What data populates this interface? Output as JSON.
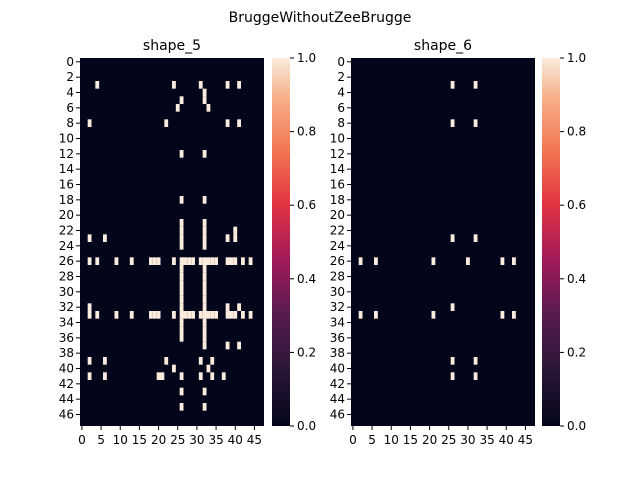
{
  "suptitle": "BruggeWithoutZeeBrugge",
  "chart_data": [
    {
      "type": "heatmap",
      "title": "shape_5",
      "rows": 48,
      "cols": 48,
      "value_range": [
        0.0,
        1.0
      ],
      "colormap": "rocket",
      "x_tick_labels": [
        "0",
        "5",
        "10",
        "15",
        "20",
        "25",
        "30",
        "35",
        "40",
        "45"
      ],
      "y_tick_labels": [
        "0",
        "2",
        "4",
        "6",
        "8",
        "10",
        "12",
        "14",
        "16",
        "18",
        "20",
        "22",
        "24",
        "26",
        "28",
        "30",
        "32",
        "34",
        "36",
        "38",
        "40",
        "42",
        "44",
        "46"
      ],
      "colorbar_ticks": [
        "0.0",
        "0.2",
        "0.4",
        "0.6",
        "0.8",
        "1.0"
      ],
      "colorbar_tick_values": [
        0.0,
        0.2,
        0.4,
        0.6,
        0.8,
        1.0
      ],
      "description_of_ones": "cells equal to 1 (all others 0)",
      "cells": [
        [
          3,
          4
        ],
        [
          3,
          24
        ],
        [
          3,
          31
        ],
        [
          3,
          38
        ],
        [
          3,
          41
        ],
        [
          4,
          32
        ],
        [
          5,
          26
        ],
        [
          5,
          32
        ],
        [
          6,
          25
        ],
        [
          6,
          33
        ],
        [
          8,
          2
        ],
        [
          8,
          22
        ],
        [
          8,
          38
        ],
        [
          8,
          41
        ],
        [
          12,
          26
        ],
        [
          12,
          32
        ],
        [
          18,
          26
        ],
        [
          18,
          32
        ],
        [
          21,
          26
        ],
        [
          21,
          32
        ],
        [
          22,
          26
        ],
        [
          22,
          32
        ],
        [
          22,
          40
        ],
        [
          23,
          2
        ],
        [
          23,
          6
        ],
        [
          23,
          26
        ],
        [
          23,
          32
        ],
        [
          23,
          38
        ],
        [
          23,
          40
        ],
        [
          24,
          26
        ],
        [
          24,
          32
        ],
        [
          26,
          2
        ],
        [
          26,
          4
        ],
        [
          26,
          9
        ],
        [
          26,
          13
        ],
        [
          26,
          18
        ],
        [
          26,
          19
        ],
        [
          26,
          20
        ],
        [
          26,
          24
        ],
        [
          26,
          26
        ],
        [
          26,
          27
        ],
        [
          26,
          28
        ],
        [
          26,
          29
        ],
        [
          26,
          31
        ],
        [
          26,
          32
        ],
        [
          26,
          33
        ],
        [
          26,
          34
        ],
        [
          26,
          35
        ],
        [
          26,
          38
        ],
        [
          26,
          39
        ],
        [
          26,
          40
        ],
        [
          26,
          42
        ],
        [
          26,
          44
        ],
        [
          27,
          26
        ],
        [
          27,
          32
        ],
        [
          28,
          26
        ],
        [
          28,
          32
        ],
        [
          29,
          26
        ],
        [
          29,
          32
        ],
        [
          30,
          26
        ],
        [
          30,
          32
        ],
        [
          31,
          26
        ],
        [
          31,
          32
        ],
        [
          32,
          2
        ],
        [
          32,
          26
        ],
        [
          32,
          32
        ],
        [
          32,
          38
        ],
        [
          32,
          41
        ],
        [
          33,
          2
        ],
        [
          33,
          4
        ],
        [
          33,
          9
        ],
        [
          33,
          13
        ],
        [
          33,
          18
        ],
        [
          33,
          19
        ],
        [
          33,
          20
        ],
        [
          33,
          24
        ],
        [
          33,
          26
        ],
        [
          33,
          27
        ],
        [
          33,
          28
        ],
        [
          33,
          29
        ],
        [
          33,
          31
        ],
        [
          33,
          32
        ],
        [
          33,
          33
        ],
        [
          33,
          34
        ],
        [
          33,
          35
        ],
        [
          33,
          38
        ],
        [
          33,
          39
        ],
        [
          33,
          40
        ],
        [
          33,
          42
        ],
        [
          33,
          44
        ],
        [
          34,
          26
        ],
        [
          34,
          32
        ],
        [
          35,
          26
        ],
        [
          35,
          32
        ],
        [
          36,
          26
        ],
        [
          36,
          32
        ],
        [
          37,
          32
        ],
        [
          37,
          38
        ],
        [
          37,
          41
        ],
        [
          39,
          2
        ],
        [
          39,
          6
        ],
        [
          39,
          22
        ],
        [
          39,
          31
        ],
        [
          39,
          34
        ],
        [
          40,
          24
        ],
        [
          40,
          33
        ],
        [
          41,
          2
        ],
        [
          41,
          6
        ],
        [
          41,
          20
        ],
        [
          41,
          21
        ],
        [
          41,
          26
        ],
        [
          41,
          31
        ],
        [
          41,
          34
        ],
        [
          41,
          37
        ],
        [
          43,
          26
        ],
        [
          43,
          32
        ],
        [
          45,
          26
        ],
        [
          45,
          32
        ]
      ]
    },
    {
      "type": "heatmap",
      "title": "shape_6",
      "rows": 48,
      "cols": 48,
      "value_range": [
        0.0,
        1.0
      ],
      "colormap": "rocket",
      "x_tick_labels": [
        "0",
        "5",
        "10",
        "15",
        "20",
        "25",
        "30",
        "35",
        "40",
        "45"
      ],
      "y_tick_labels": [
        "0",
        "2",
        "4",
        "6",
        "8",
        "10",
        "12",
        "14",
        "16",
        "18",
        "20",
        "22",
        "24",
        "26",
        "28",
        "30",
        "32",
        "34",
        "36",
        "38",
        "40",
        "42",
        "44",
        "46"
      ],
      "colorbar_ticks": [
        "0.0",
        "0.2",
        "0.4",
        "0.6",
        "0.8",
        "1.0"
      ],
      "colorbar_tick_values": [
        0.0,
        0.2,
        0.4,
        0.6,
        0.8,
        1.0
      ],
      "description_of_ones": "cells equal to 1 (all others 0)",
      "cells": [
        [
          3,
          26
        ],
        [
          3,
          32
        ],
        [
          8,
          26
        ],
        [
          8,
          32
        ],
        [
          23,
          26
        ],
        [
          23,
          32
        ],
        [
          26,
          2
        ],
        [
          26,
          6
        ],
        [
          26,
          21
        ],
        [
          26,
          30
        ],
        [
          26,
          39
        ],
        [
          26,
          42
        ],
        [
          32,
          26
        ],
        [
          33,
          2
        ],
        [
          33,
          6
        ],
        [
          33,
          21
        ],
        [
          33,
          39
        ],
        [
          33,
          42
        ],
        [
          39,
          26
        ],
        [
          39,
          32
        ],
        [
          41,
          26
        ],
        [
          41,
          32
        ]
      ]
    }
  ]
}
